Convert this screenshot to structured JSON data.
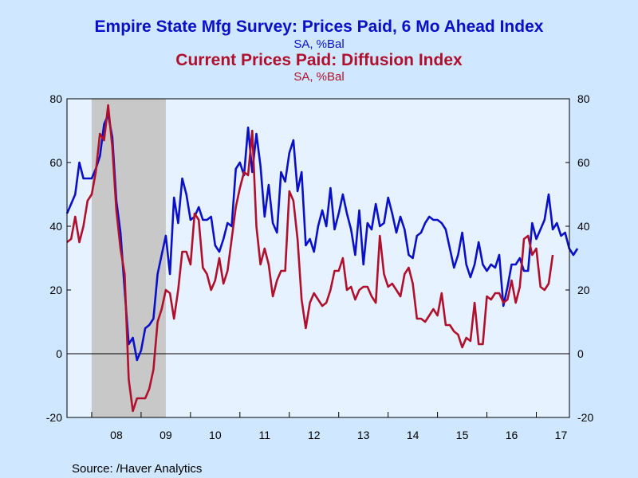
{
  "chart_data": {
    "type": "line",
    "title": "Empire State Mfg Survey: Prices Paid, 6 Mo Ahead Index",
    "title_units": "SA, %Bal",
    "subtitle": "Current Prices Paid: Diffusion Index",
    "subtitle_units": "SA, %Bal",
    "source": "Source:  /Haver Analytics",
    "ylim": [
      -20,
      80
    ],
    "yticks": [
      -20,
      0,
      20,
      40,
      60,
      80
    ],
    "xlim": [
      2007.5,
      2017.67
    ],
    "xtick_labels": [
      {
        "label": "08",
        "x": 2008.5
      },
      {
        "label": "09",
        "x": 2009.5
      },
      {
        "label": "10",
        "x": 2010.5
      },
      {
        "label": "11",
        "x": 2011.5
      },
      {
        "label": "12",
        "x": 2012.5
      },
      {
        "label": "13",
        "x": 2013.5
      },
      {
        "label": "14",
        "x": 2014.5
      },
      {
        "label": "15",
        "x": 2015.5
      },
      {
        "label": "16",
        "x": 2016.5
      },
      {
        "label": "17",
        "x": 2017.5
      }
    ],
    "recession": [
      2008.0,
      2009.5
    ],
    "grid": false,
    "zero_line": true,
    "colors": {
      "six_month": "#0a10c8",
      "current": "#b0102c",
      "recession": "#c8c8c8",
      "plot_bg": "#e6f2ff",
      "page_bg": "#cfe7ff"
    },
    "start": "2007-07",
    "series": [
      {
        "values": [
          44,
          47,
          50,
          60,
          55,
          55,
          55,
          58,
          62,
          72,
          75,
          68,
          48,
          38,
          20,
          3,
          5,
          -2,
          1,
          8,
          9,
          11,
          25,
          31,
          37,
          25,
          49,
          41,
          55,
          50,
          42,
          43,
          46,
          42,
          42,
          43,
          34,
          32,
          36,
          41,
          40,
          58,
          60,
          56,
          71,
          57,
          69,
          59,
          43,
          53,
          41,
          38,
          57,
          54,
          63,
          67,
          51,
          57,
          34,
          36,
          32,
          40,
          45,
          40,
          52,
          39,
          44,
          50,
          44,
          39,
          31,
          45,
          28,
          41,
          39,
          47,
          40,
          41,
          49,
          44,
          38,
          43,
          39,
          31,
          30,
          37,
          38,
          41,
          43,
          42,
          42,
          41,
          39,
          33,
          27,
          31,
          38,
          28,
          24,
          28,
          35,
          28,
          26,
          28,
          27,
          31,
          15,
          21,
          28,
          28,
          30,
          26,
          26,
          41,
          36,
          39,
          42,
          50,
          39,
          41,
          37,
          38,
          33,
          31,
          33
        ]
      },
      {
        "values": [
          35,
          36,
          43,
          35,
          40,
          48,
          50,
          57,
          69,
          67,
          78,
          65,
          45,
          33,
          25,
          -8,
          -18,
          -14,
          -14,
          -14,
          -11,
          -5,
          10,
          14,
          20,
          19,
          11,
          20,
          32,
          32,
          28,
          44,
          42,
          27,
          25,
          20,
          23,
          30,
          22,
          26,
          36,
          46,
          52,
          57,
          56,
          70,
          40,
          28,
          33,
          28,
          18,
          23,
          26,
          26,
          51,
          48,
          36,
          17,
          8,
          16,
          19,
          17,
          15,
          16,
          20,
          26,
          26,
          30,
          20,
          21,
          17,
          20,
          21,
          21,
          18,
          16,
          37,
          25,
          21,
          22,
          20,
          18,
          25,
          27,
          22,
          11,
          11,
          10,
          12,
          14,
          12,
          19,
          9,
          9,
          7,
          6,
          2,
          5,
          4,
          16,
          3,
          3,
          18,
          17,
          19,
          19,
          16,
          17,
          23,
          16,
          21,
          36,
          37,
          31,
          33,
          21,
          20,
          22,
          31
        ]
      }
    ]
  }
}
